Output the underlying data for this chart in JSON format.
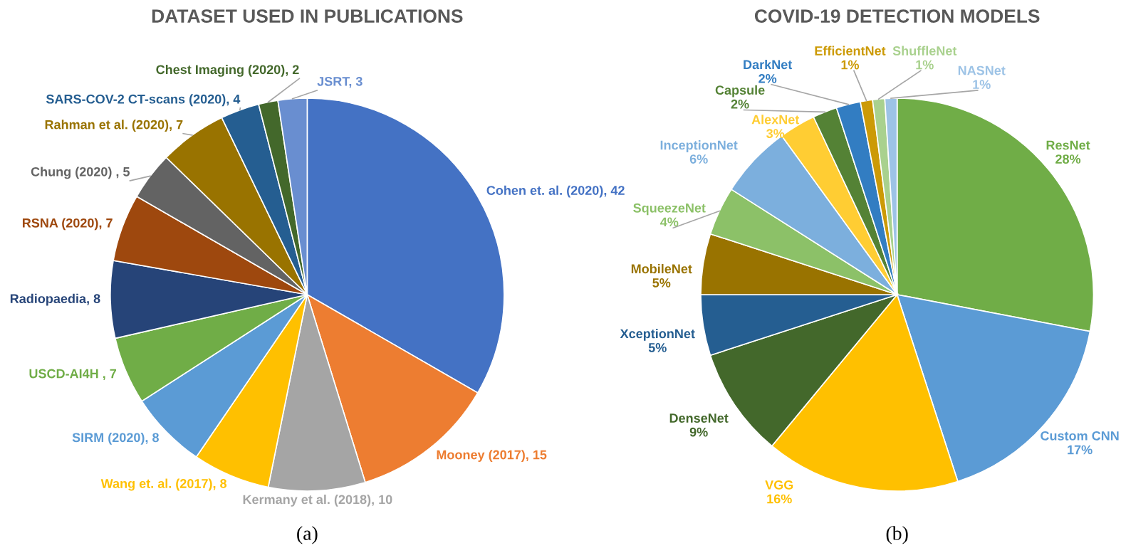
{
  "chart_data": [
    {
      "type": "pie",
      "title": "DATASET USED IN PUBLICATIONS",
      "annotations": [
        "(a)"
      ],
      "categories": [
        "Cohen et. al. (2020)",
        "Mooney (2017)",
        "Kermany et al. (2018)",
        "Wang et. al. (2017)",
        "SIRM (2020)",
        "USCD-AI4H ",
        "Radiopaedia",
        "RSNA (2020)",
        "Chung (2020) ",
        "Rahman et al. (2020)",
        "SARS-COV-2 CT-scans (2020)",
        "Chest Imaging (2020)",
        "JSRT"
      ],
      "values": [
        42,
        15,
        10,
        8,
        8,
        7,
        8,
        7,
        5,
        7,
        4,
        2,
        3
      ],
      "value_labels": [
        "42",
        "15",
        "10",
        "8",
        "8",
        "7",
        "8",
        "7",
        "5",
        "7",
        "4",
        "2",
        "3"
      ],
      "colors": [
        "#4472c4",
        "#ed7d31",
        "#a5a5a5",
        "#ffc000",
        "#5b9bd5",
        "#70ad47",
        "#264478",
        "#9e480e",
        "#636363",
        "#997300",
        "#255e91",
        "#43682b",
        "#698ed0"
      ]
    },
    {
      "type": "pie",
      "title": "COVID-19 DETECTION MODELS",
      "annotations": [
        "(b)"
      ],
      "categories": [
        "ResNet",
        "Custom CNN",
        "VGG",
        "DenseNet",
        "XceptionNet",
        "MobileNet",
        "SqueezeNet",
        "InceptionNet",
        "AlexNet",
        "Capsule",
        "DarkNet",
        "EfficientNet",
        "ShuffleNet",
        "NASNet"
      ],
      "values": [
        28,
        17,
        16,
        9,
        5,
        5,
        4,
        6,
        3,
        2,
        2,
        1,
        1,
        1
      ],
      "value_labels": [
        "28%",
        "17%",
        "16%",
        "9%",
        "5%",
        "5%",
        "4%",
        "6%",
        "3%",
        "2%",
        "2%",
        "1%",
        "1%",
        "1%"
      ],
      "colors": [
        "#70ad47",
        "#5b9bd5",
        "#ffc000",
        "#43682b",
        "#255e91",
        "#997300",
        "#8cc168",
        "#7cafdd",
        "#ffcd33",
        "#548235",
        "#327dc2",
        "#cc9a06",
        "#a9d18e",
        "#9dc3e6"
      ]
    }
  ]
}
